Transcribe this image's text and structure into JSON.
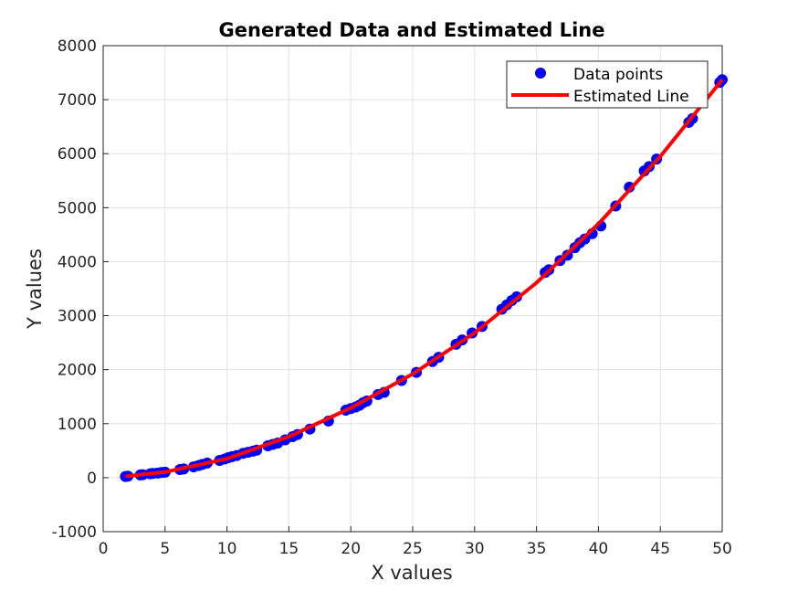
{
  "chart_data": {
    "type": "scatter",
    "title": "Generated Data and Estimated Line",
    "xlabel": "X values",
    "ylabel": "Y values",
    "xlim": [
      0,
      50
    ],
    "ylim": [
      -1000,
      8000
    ],
    "x_ticks": [
      "0",
      "5",
      "10",
      "15",
      "20",
      "25",
      "30",
      "35",
      "40",
      "45",
      "50"
    ],
    "y_ticks": [
      "-1000",
      "0",
      "1000",
      "2000",
      "3000",
      "4000",
      "5000",
      "6000",
      "7000",
      "8000"
    ],
    "grid": true,
    "legend_position": "top-right",
    "series": [
      {
        "name": "Data points",
        "kind": "markers",
        "color": "#0000ff",
        "x": [
          1.8,
          2.0,
          3.0,
          3.2,
          3.8,
          4.0,
          4.4,
          4.7,
          5.0,
          6.2,
          6.5,
          7.3,
          7.7,
          8.0,
          8.4,
          9.4,
          9.8,
          10.1,
          10.4,
          10.8,
          11.3,
          11.7,
          12.1,
          12.4,
          13.3,
          13.7,
          14.1,
          14.7,
          15.3,
          15.7,
          16.7,
          18.2,
          19.6,
          20.0,
          20.4,
          20.7,
          21.0,
          21.3,
          22.2,
          22.7,
          24.1,
          25.3,
          26.6,
          27.1,
          28.5,
          29.0,
          29.8,
          30.6,
          32.2,
          32.6,
          33.0,
          33.4,
          35.7,
          36.0,
          36.9,
          37.5,
          38.1,
          38.5,
          38.9,
          39.5,
          40.2,
          41.4,
          42.5,
          43.7,
          44.1,
          44.7,
          47.3,
          47.6,
          49.8,
          50.0
        ],
        "y": [
          22,
          28,
          50,
          55,
          72,
          78,
          85,
          95,
          102,
          150,
          160,
          200,
          225,
          245,
          270,
          320,
          345,
          370,
          390,
          410,
          450,
          470,
          490,
          510,
          590,
          615,
          640,
          700,
          760,
          800,
          900,
          1050,
          1250,
          1280,
          1310,
          1340,
          1390,
          1420,
          1540,
          1580,
          1800,
          1950,
          2150,
          2230,
          2470,
          2550,
          2680,
          2800,
          3120,
          3200,
          3280,
          3350,
          3800,
          3850,
          4020,
          4120,
          4260,
          4350,
          4420,
          4520,
          4660,
          5030,
          5380,
          5680,
          5760,
          5900,
          6580,
          6650,
          7320,
          7370
        ]
      },
      {
        "name": "Estimated Line",
        "kind": "line",
        "color": "#ff0000",
        "x": [
          1.8,
          5,
          10,
          15,
          20,
          25,
          30,
          35,
          40,
          45,
          50
        ],
        "y": [
          25,
          105,
          350,
          760,
          1290,
          1920,
          2680,
          3610,
          4700,
          5950,
          7370
        ]
      }
    ]
  }
}
